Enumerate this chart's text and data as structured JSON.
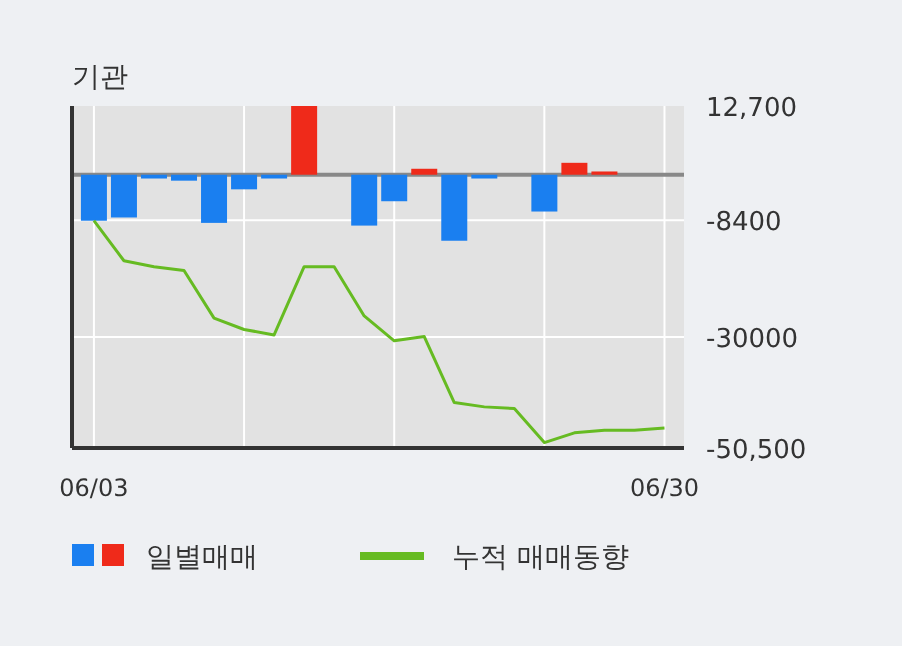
{
  "chart_data": {
    "type": "bar",
    "title": "기관",
    "categories": [
      "06/03",
      null,
      null,
      null,
      null,
      null,
      null,
      null,
      null,
      null,
      null,
      null,
      null,
      null,
      null,
      null,
      null,
      null,
      null,
      "06/30"
    ],
    "series": [
      {
        "name": "일별매매",
        "colors": [
          "#1a7ff0",
          "#1a7ff0",
          "#1a7ff0",
          "#1a7ff0",
          "#1a7ff0",
          "#1a7ff0",
          "#1a7ff0",
          "#ef2a1a",
          "#1a7ff0",
          "#1a7ff0",
          "#1a7ff0",
          "#ef2a1a",
          "#1a7ff0",
          "#1a7ff0",
          "#1a7ff0",
          "#1a7ff0",
          "#ef2a1a",
          "#ef2a1a",
          "#1a7ff0",
          "#1a7ff0"
        ],
        "values": [
          -8500,
          -7900,
          -700,
          -1100,
          -8900,
          -2700,
          -700,
          12700,
          0,
          -9400,
          -4900,
          1100,
          -12200,
          -700,
          0,
          -6800,
          2200,
          600,
          0,
          0
        ]
      },
      {
        "name": "누적 매매동향",
        "type": "line",
        "color": "#66bb22",
        "values": [
          -8500,
          -15900,
          -17000,
          -17700,
          -26500,
          -28600,
          -29600,
          -17000,
          -17000,
          -26100,
          -30700,
          -29900,
          -42100,
          -42900,
          -43200,
          -49500,
          -47700,
          -47200,
          -47200,
          -46800
        ]
      }
    ],
    "ylim": [
      -50500,
      12700
    ],
    "yticks": [
      {
        "value": 12700,
        "label": "12,700"
      },
      {
        "value": -8400,
        "label": "-8400"
      },
      {
        "value": -30000,
        "label": "-30000"
      },
      {
        "value": -50500,
        "label": "-50,500"
      }
    ],
    "ref_lines": [
      {
        "axis": "y",
        "value": 0,
        "color": "#888888"
      }
    ],
    "grid": true,
    "legend": "bottom"
  }
}
